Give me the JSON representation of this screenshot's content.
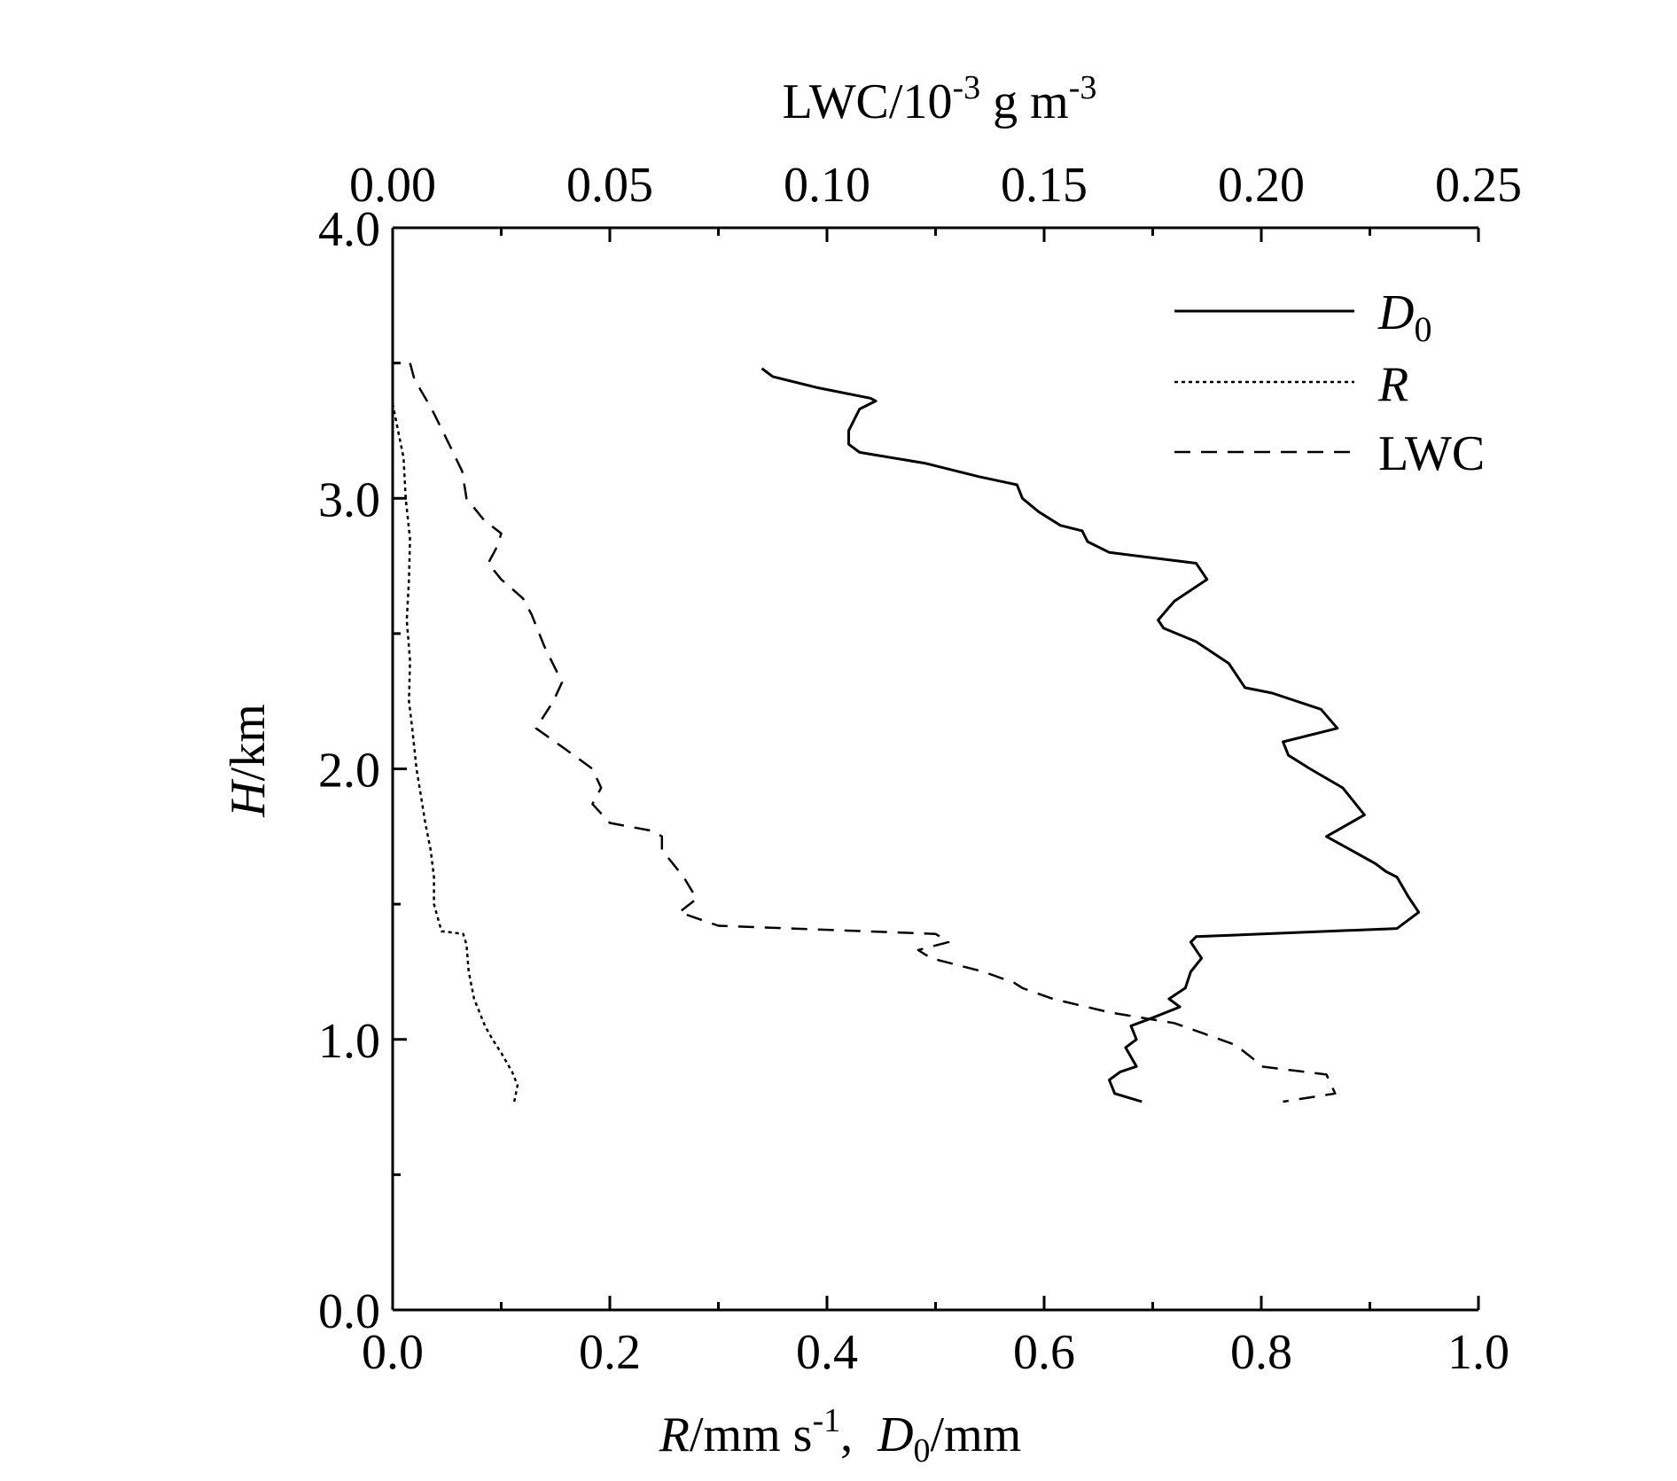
{
  "chart_data": {
    "type": "line",
    "title": "",
    "xlabel_bottom": {
      "var1": "R",
      "unit1": "/mm s",
      "exp1": "-1",
      "sep": ",  ",
      "var2": "D",
      "sub2": "0",
      "unit2": "/mm"
    },
    "xlabel_top": {
      "base": "LWC/10",
      "exp1": "-3",
      "mid": " g m",
      "exp2": "-3"
    },
    "ylabel": {
      "var": "H",
      "unit": "/km"
    },
    "x_bottom_range": [
      0,
      1.0
    ],
    "x_top_range": [
      0,
      0.25
    ],
    "y_range": [
      0,
      4.0
    ],
    "x_bottom_ticks": [
      "0.0",
      "0.2",
      "0.4",
      "0.6",
      "0.8",
      "1.0"
    ],
    "x_top_ticks": [
      "0.00",
      "0.05",
      "0.10",
      "0.15",
      "0.20",
      "0.25"
    ],
    "y_ticks": [
      "0.0",
      "1.0",
      "2.0",
      "3.0",
      "4.0"
    ],
    "grid": false,
    "legend_position": "top-right",
    "series": [
      {
        "name": "D0",
        "legend": {
          "main": "D",
          "sub": "0"
        },
        "axis": "bottom",
        "style": "solid",
        "points": [
          [
            0.34,
            3.48
          ],
          [
            0.35,
            3.45
          ],
          [
            0.39,
            3.41
          ],
          [
            0.44,
            3.37
          ],
          [
            0.445,
            3.36
          ],
          [
            0.43,
            3.33
          ],
          [
            0.42,
            3.25
          ],
          [
            0.42,
            3.2
          ],
          [
            0.43,
            3.17
          ],
          [
            0.49,
            3.13
          ],
          [
            0.54,
            3.08
          ],
          [
            0.575,
            3.05
          ],
          [
            0.58,
            3.0
          ],
          [
            0.595,
            2.95
          ],
          [
            0.615,
            2.9
          ],
          [
            0.635,
            2.88
          ],
          [
            0.64,
            2.84
          ],
          [
            0.66,
            2.8
          ],
          [
            0.74,
            2.76
          ],
          [
            0.75,
            2.7
          ],
          [
            0.72,
            2.62
          ],
          [
            0.705,
            2.55
          ],
          [
            0.71,
            2.52
          ],
          [
            0.74,
            2.47
          ],
          [
            0.77,
            2.39
          ],
          [
            0.785,
            2.3
          ],
          [
            0.81,
            2.28
          ],
          [
            0.855,
            2.22
          ],
          [
            0.87,
            2.15
          ],
          [
            0.82,
            2.1
          ],
          [
            0.825,
            2.05
          ],
          [
            0.845,
            2.0
          ],
          [
            0.875,
            1.93
          ],
          [
            0.895,
            1.83
          ],
          [
            0.86,
            1.75
          ],
          [
            0.905,
            1.65
          ],
          [
            0.915,
            1.62
          ],
          [
            0.925,
            1.6
          ],
          [
            0.935,
            1.53
          ],
          [
            0.945,
            1.47
          ],
          [
            0.925,
            1.41
          ],
          [
            0.74,
            1.38
          ],
          [
            0.735,
            1.36
          ],
          [
            0.745,
            1.3
          ],
          [
            0.735,
            1.25
          ],
          [
            0.73,
            1.19
          ],
          [
            0.715,
            1.15
          ],
          [
            0.725,
            1.12
          ],
          [
            0.7,
            1.08
          ],
          [
            0.68,
            1.05
          ],
          [
            0.685,
            1.0
          ],
          [
            0.675,
            0.97
          ],
          [
            0.685,
            0.9
          ],
          [
            0.67,
            0.88
          ],
          [
            0.66,
            0.85
          ],
          [
            0.665,
            0.8
          ],
          [
            0.69,
            0.77
          ]
        ]
      },
      {
        "name": "R",
        "legend": {
          "main": "R",
          "sub": ""
        },
        "axis": "bottom",
        "style": "dotted",
        "points": [
          [
            0.0,
            3.35
          ],
          [
            0.005,
            3.25
          ],
          [
            0.01,
            3.15
          ],
          [
            0.012,
            3.0
          ],
          [
            0.016,
            2.85
          ],
          [
            0.015,
            2.7
          ],
          [
            0.013,
            2.55
          ],
          [
            0.016,
            2.4
          ],
          [
            0.015,
            2.25
          ],
          [
            0.018,
            2.15
          ],
          [
            0.022,
            2.0
          ],
          [
            0.026,
            1.9
          ],
          [
            0.03,
            1.8
          ],
          [
            0.035,
            1.7
          ],
          [
            0.038,
            1.6
          ],
          [
            0.038,
            1.5
          ],
          [
            0.045,
            1.4
          ],
          [
            0.065,
            1.39
          ],
          [
            0.068,
            1.35
          ],
          [
            0.07,
            1.25
          ],
          [
            0.075,
            1.15
          ],
          [
            0.08,
            1.1
          ],
          [
            0.085,
            1.05
          ],
          [
            0.092,
            1.0
          ],
          [
            0.1,
            0.95
          ],
          [
            0.11,
            0.88
          ],
          [
            0.115,
            0.83
          ],
          [
            0.112,
            0.77
          ]
        ]
      },
      {
        "name": "LWC",
        "legend": {
          "main": "LWC",
          "sub": ""
        },
        "axis": "top",
        "style": "dashed",
        "points": [
          [
            0.004,
            3.5
          ],
          [
            0.005,
            3.44
          ],
          [
            0.009,
            3.33
          ],
          [
            0.013,
            3.2
          ],
          [
            0.016,
            3.1
          ],
          [
            0.017,
            3.0
          ],
          [
            0.021,
            2.92
          ],
          [
            0.025,
            2.87
          ],
          [
            0.024,
            2.82
          ],
          [
            0.022,
            2.76
          ],
          [
            0.025,
            2.7
          ],
          [
            0.03,
            2.63
          ],
          [
            0.032,
            2.57
          ],
          [
            0.035,
            2.45
          ],
          [
            0.039,
            2.32
          ],
          [
            0.037,
            2.25
          ],
          [
            0.033,
            2.15
          ],
          [
            0.04,
            2.07
          ],
          [
            0.046,
            2.0
          ],
          [
            0.048,
            1.93
          ],
          [
            0.046,
            1.87
          ],
          [
            0.05,
            1.8
          ],
          [
            0.06,
            1.77
          ],
          [
            0.062,
            1.75
          ],
          [
            0.062,
            1.7
          ],
          [
            0.067,
            1.6
          ],
          [
            0.07,
            1.52
          ],
          [
            0.066,
            1.47
          ],
          [
            0.075,
            1.42
          ],
          [
            0.125,
            1.39
          ],
          [
            0.128,
            1.36
          ],
          [
            0.121,
            1.33
          ],
          [
            0.124,
            1.3
          ],
          [
            0.136,
            1.25
          ],
          [
            0.143,
            1.21
          ],
          [
            0.145,
            1.19
          ],
          [
            0.152,
            1.15
          ],
          [
            0.165,
            1.1
          ],
          [
            0.18,
            1.06
          ],
          [
            0.187,
            1.02
          ],
          [
            0.194,
            0.98
          ],
          [
            0.198,
            0.93
          ],
          [
            0.2,
            0.9
          ],
          [
            0.215,
            0.87
          ],
          [
            0.217,
            0.8
          ],
          [
            0.205,
            0.77
          ]
        ]
      }
    ]
  }
}
